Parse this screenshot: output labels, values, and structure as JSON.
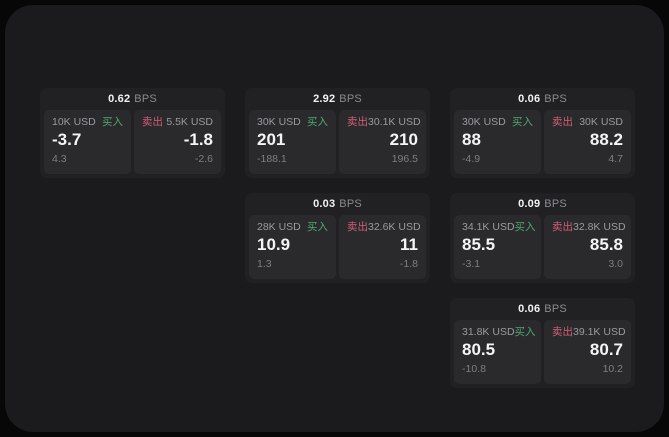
{
  "labels": {
    "bps_unit": "BPS",
    "buy": "买入",
    "sell": "卖出"
  },
  "colors": {
    "page_bg": "#070708",
    "panel_bg": "#1b1b1d",
    "card_bg": "#212124",
    "subcard_bg": "#2a2a2d",
    "buy_accent": "#4fa771",
    "sell_accent": "#cf5f77",
    "primary_text": "#f4f4f5",
    "muted_text": "#9a9a9f"
  },
  "cards": [
    {
      "row": 1,
      "col": 1,
      "bps": "0.62",
      "buy": {
        "notional": "10K USD",
        "price": "-3.7",
        "delta": "4.3"
      },
      "sell": {
        "notional": "5.5K USD",
        "price": "-1.8",
        "delta": "-2.6"
      }
    },
    {
      "row": 1,
      "col": 2,
      "bps": "2.92",
      "buy": {
        "notional": "30K USD",
        "price": "201",
        "delta": "-188.1"
      },
      "sell": {
        "notional": "30.1K USD",
        "price": "210",
        "delta": "196.5"
      }
    },
    {
      "row": 1,
      "col": 3,
      "bps": "0.06",
      "buy": {
        "notional": "30K USD",
        "price": "88",
        "delta": "-4.9"
      },
      "sell": {
        "notional": "30K USD",
        "price": "88.2",
        "delta": "4.7"
      }
    },
    {
      "row": 2,
      "col": 2,
      "bps": "0.03",
      "buy": {
        "notional": "28K USD",
        "price": "10.9",
        "delta": "1.3"
      },
      "sell": {
        "notional": "32.6K USD",
        "price": "11",
        "delta": "-1.8"
      }
    },
    {
      "row": 2,
      "col": 3,
      "bps": "0.09",
      "buy": {
        "notional": "34.1K USD",
        "price": "85.5",
        "delta": "-3.1"
      },
      "sell": {
        "notional": "32.8K USD",
        "price": "85.8",
        "delta": "3.0"
      }
    },
    {
      "row": 3,
      "col": 3,
      "bps": "0.06",
      "buy": {
        "notional": "31.8K USD",
        "price": "80.5",
        "delta": "-10.8"
      },
      "sell": {
        "notional": "39.1K USD",
        "price": "80.7",
        "delta": "10.2"
      }
    }
  ]
}
